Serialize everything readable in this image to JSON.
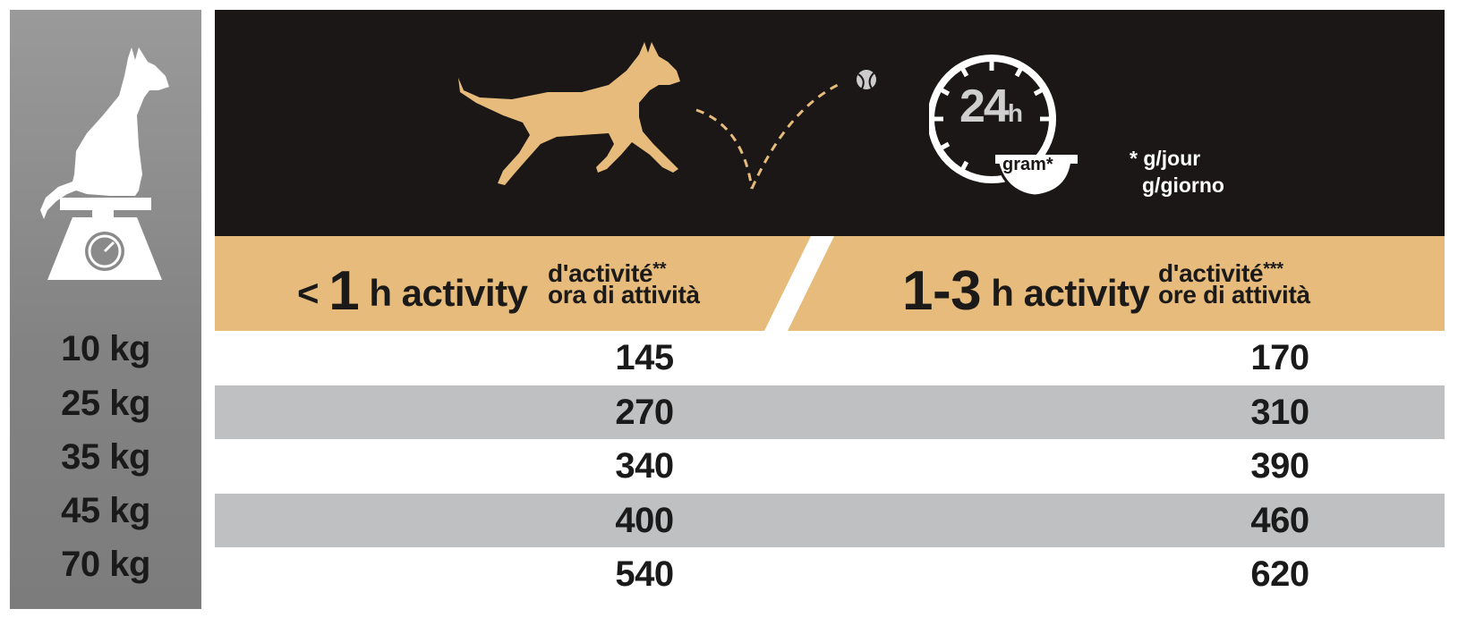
{
  "banner": {
    "clock_text": "24",
    "clock_unit": "h",
    "bowl_label": "gram*",
    "note_line1": "* g/jour",
    "note_line2": "g/giorno"
  },
  "activity": {
    "low": {
      "prefix": "< ",
      "number": "1",
      "suffix": " h activity",
      "sub_fr": "d'activité",
      "sub_fr_stars": "**",
      "sub_it": "ora di attività"
    },
    "high": {
      "number": "1-3",
      "suffix": " h activity",
      "sub_fr": "d'activité",
      "sub_fr_stars": "***",
      "sub_it": "ore di attività"
    }
  },
  "rows": [
    {
      "weight": "10 kg",
      "low": "145",
      "high": "170"
    },
    {
      "weight": "25 kg",
      "low": "270",
      "high": "310"
    },
    {
      "weight": "35 kg",
      "low": "340",
      "high": "390"
    },
    {
      "weight": "45 kg",
      "low": "400",
      "high": "460"
    },
    {
      "weight": "70 kg",
      "low": "540",
      "high": "620"
    }
  ],
  "colors": {
    "banner_bg": "#1a1716",
    "accent": "#e6bb7b",
    "row_shade": "#bfc0c1",
    "sidebar_gray": "#8a8a8a"
  }
}
